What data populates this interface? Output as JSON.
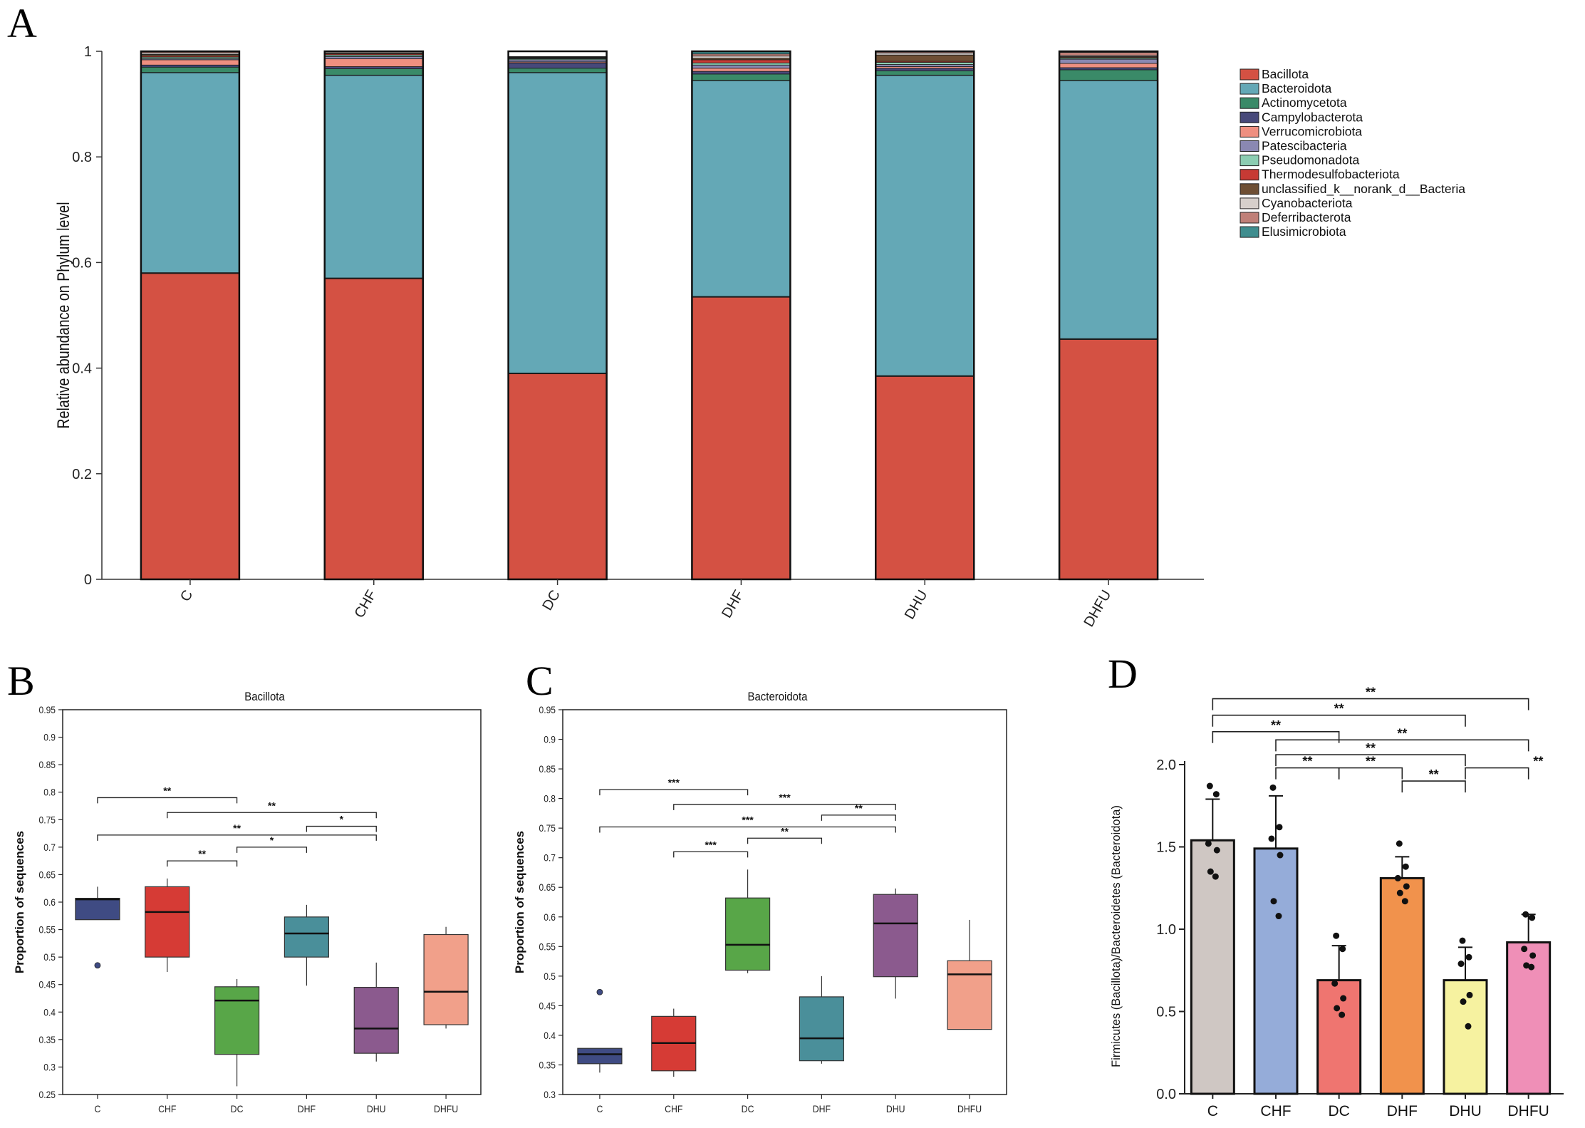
{
  "panels": {
    "A": "A",
    "B": "B",
    "C": "C",
    "D": "D"
  },
  "colors": {
    "Bacillota": "#d45143",
    "Bacteroidota": "#64a8b6",
    "Actinomycetota": "#3a8a68",
    "Campylobacterota": "#47497a",
    "Verrucomicrobiota": "#ee8f80",
    "Patescibacteria": "#8a88b2",
    "Pseudomonadota": "#8ccdb2",
    "Thermodesulfobacteriota": "#c73a34",
    "unclassified_k__norank_d__Bacteria": "#6e4f34",
    "Cyanobacteriota": "#d6cfcb",
    "Deferribacterota": "#c08078",
    "Elusimicrobiota": "#3f8d8e",
    "box_C": "#3f4b83",
    "box_CHF": "#d63b35",
    "box_DC": "#58a648",
    "box_DHF": "#4a8f9a",
    "box_DHU": "#8b5a8e",
    "box_DHFU": "#f1a08a",
    "bar_C": "#cfc7c3",
    "bar_CHF": "#95acd9",
    "bar_DC": "#ef7570",
    "bar_DHF": "#f1924c",
    "bar_DHU": "#f6f2a0",
    "bar_DHFU": "#ef8fb7"
  },
  "chart_data": [
    {
      "id": "A",
      "type": "bar",
      "stacked": true,
      "title": "",
      "xlabel": "",
      "ylabel": "Relative abundance on Phylum level",
      "ylim": [
        0,
        1
      ],
      "yticks": [
        "0",
        "0.2",
        "0.4",
        "0.6",
        "0.8",
        "1"
      ],
      "categories": [
        "C",
        "CHF",
        "DC",
        "DHF",
        "DHU",
        "DHFU"
      ],
      "legend_position": "right",
      "series": [
        {
          "name": "Bacillota",
          "values": [
            0.58,
            0.57,
            0.39,
            0.535,
            0.385,
            0.455
          ]
        },
        {
          "name": "Bacteroidota",
          "values": [
            0.38,
            0.385,
            0.57,
            0.41,
            0.57,
            0.49
          ]
        },
        {
          "name": "Actinomycetota",
          "values": [
            0.01,
            0.012,
            0.008,
            0.012,
            0.008,
            0.02
          ]
        },
        {
          "name": "Campylobacterota",
          "values": [
            0.004,
            0.004,
            0.01,
            0.005,
            0.005,
            0.004
          ]
        },
        {
          "name": "Verrucomicrobiota",
          "values": [
            0.01,
            0.015,
            0.002,
            0.006,
            0.003,
            0.008
          ]
        },
        {
          "name": "Patescibacteria",
          "values": [
            0.002,
            0.004,
            0.004,
            0.006,
            0.004,
            0.008
          ]
        },
        {
          "name": "Pseudomonadota",
          "values": [
            0.003,
            0.003,
            0.002,
            0.004,
            0.004,
            0.002
          ]
        },
        {
          "name": "Thermodesulfobacteriota",
          "values": [
            0.002,
            0.002,
            0.001,
            0.006,
            0.002,
            0.001
          ]
        },
        {
          "name": "unclassified_k__norank_d__Bacteria",
          "values": [
            0.003,
            0.002,
            0.001,
            0.003,
            0.012,
            0.002
          ]
        },
        {
          "name": "Cyanobacteriota",
          "values": [
            0.003,
            0.002,
            0.001,
            0.004,
            0.004,
            0.002
          ]
        },
        {
          "name": "Deferribacterota",
          "values": [
            0.002,
            0.001,
            0.001,
            0.004,
            0.002,
            0.006
          ]
        },
        {
          "name": "Elusimicrobiota",
          "values": [
            0.001,
            0.0,
            0.0,
            0.005,
            0.001,
            0.002
          ]
        }
      ]
    },
    {
      "id": "B",
      "type": "box",
      "title": "Bacillota",
      "xlabel": "",
      "ylabel": "Proportion of sequences",
      "ylim": [
        0.25,
        0.95
      ],
      "yticks": [
        "0.25",
        "0.3",
        "0.35",
        "0.4",
        "0.45",
        "0.5",
        "0.55",
        "0.6",
        "0.65",
        "0.7",
        "0.75",
        "0.8",
        "0.85",
        "0.9",
        "0.95"
      ],
      "categories": [
        "C",
        "CHF",
        "DC",
        "DHF",
        "DHU",
        "DHFU"
      ],
      "boxes": [
        {
          "group": "C",
          "q1": 0.568,
          "median": 0.605,
          "q3": 0.607,
          "whisker_low": 0.568,
          "whisker_high": 0.628,
          "outliers": [
            0.485
          ]
        },
        {
          "group": "CHF",
          "q1": 0.5,
          "median": 0.582,
          "q3": 0.628,
          "whisker_low": 0.473,
          "whisker_high": 0.643,
          "outliers": []
        },
        {
          "group": "DC",
          "q1": 0.323,
          "median": 0.421,
          "q3": 0.446,
          "whisker_low": 0.265,
          "whisker_high": 0.46,
          "outliers": []
        },
        {
          "group": "DHF",
          "q1": 0.5,
          "median": 0.543,
          "q3": 0.573,
          "whisker_low": 0.448,
          "whisker_high": 0.595,
          "outliers": []
        },
        {
          "group": "DHU",
          "q1": 0.325,
          "median": 0.37,
          "q3": 0.445,
          "whisker_low": 0.31,
          "whisker_high": 0.49,
          "outliers": []
        },
        {
          "group": "DHFU",
          "q1": 0.377,
          "median": 0.437,
          "q3": 0.541,
          "whisker_low": 0.37,
          "whisker_high": 0.555,
          "outliers": []
        }
      ],
      "significance": [
        {
          "from": "C",
          "to": "DC",
          "y": 0.79,
          "label": "**"
        },
        {
          "from": "CHF",
          "to": "DHU",
          "y": 0.763,
          "label": "**"
        },
        {
          "from": "DHF",
          "to": "DHU",
          "y": 0.738,
          "label": "*"
        },
        {
          "from": "C",
          "to": "DHU",
          "y": 0.722,
          "label": "**"
        },
        {
          "from": "DC",
          "to": "DHF",
          "y": 0.7,
          "label": "*"
        },
        {
          "from": "CHF",
          "to": "DC",
          "y": 0.675,
          "label": "**"
        }
      ]
    },
    {
      "id": "C",
      "type": "box",
      "title": "Bacteroidota",
      "xlabel": "",
      "ylabel": "Proportion of sequences",
      "ylim": [
        0.3,
        0.95
      ],
      "yticks": [
        "0.3",
        "0.35",
        "0.4",
        "0.45",
        "0.5",
        "0.55",
        "0.6",
        "0.65",
        "0.7",
        "0.75",
        "0.8",
        "0.85",
        "0.9",
        "0.95"
      ],
      "categories": [
        "C",
        "CHF",
        "DC",
        "DHF",
        "DHU",
        "DHFU"
      ],
      "boxes": [
        {
          "group": "C",
          "q1": 0.352,
          "median": 0.368,
          "q3": 0.378,
          "whisker_low": 0.337,
          "whisker_high": 0.378,
          "outliers": [
            0.473
          ]
        },
        {
          "group": "CHF",
          "q1": 0.34,
          "median": 0.387,
          "q3": 0.432,
          "whisker_low": 0.33,
          "whisker_high": 0.445,
          "outliers": []
        },
        {
          "group": "DC",
          "q1": 0.51,
          "median": 0.553,
          "q3": 0.632,
          "whisker_low": 0.505,
          "whisker_high": 0.68,
          "outliers": []
        },
        {
          "group": "DHF",
          "q1": 0.357,
          "median": 0.395,
          "q3": 0.465,
          "whisker_low": 0.352,
          "whisker_high": 0.5,
          "outliers": []
        },
        {
          "group": "DHU",
          "q1": 0.499,
          "median": 0.589,
          "q3": 0.638,
          "whisker_low": 0.462,
          "whisker_high": 0.648,
          "outliers": []
        },
        {
          "group": "DHFU",
          "q1": 0.41,
          "median": 0.503,
          "q3": 0.526,
          "whisker_low": 0.41,
          "whisker_high": 0.595,
          "outliers": []
        }
      ],
      "significance": [
        {
          "from": "C",
          "to": "DC",
          "y": 0.815,
          "label": "***"
        },
        {
          "from": "CHF",
          "to": "DHU",
          "y": 0.79,
          "label": "***"
        },
        {
          "from": "DHF",
          "to": "DHU",
          "y": 0.772,
          "label": "**"
        },
        {
          "from": "C",
          "to": "DHU",
          "y": 0.752,
          "label": "***"
        },
        {
          "from": "DC",
          "to": "DHF",
          "y": 0.733,
          "label": "**"
        },
        {
          "from": "CHF",
          "to": "DC",
          "y": 0.71,
          "label": "***"
        }
      ]
    },
    {
      "id": "D",
      "type": "bar",
      "title": "",
      "xlabel": "",
      "ylabel": "Firmicutes (Bacillota)/Bacteroidetes (Bacteroidota)",
      "ylim": [
        0,
        2.0
      ],
      "yticks": [
        "0.0",
        "0.5",
        "1.0",
        "1.5",
        "2.0"
      ],
      "categories": [
        "C",
        "CHF",
        "DC",
        "DHF",
        "DHU",
        "DHFU"
      ],
      "values": [
        1.54,
        1.49,
        0.69,
        1.31,
        0.69,
        0.92
      ],
      "errors": [
        0.25,
        0.32,
        0.21,
        0.13,
        0.2,
        0.17
      ],
      "points": [
        [
          1.87,
          1.82,
          1.52,
          1.48,
          1.35,
          1.32
        ],
        [
          1.86,
          1.62,
          1.55,
          1.45,
          1.17,
          1.08
        ],
        [
          0.96,
          0.88,
          0.67,
          0.58,
          0.52,
          0.48
        ],
        [
          1.52,
          1.38,
          1.31,
          1.26,
          1.22,
          1.17
        ],
        [
          0.93,
          0.83,
          0.79,
          0.6,
          0.56,
          0.41
        ],
        [
          1.09,
          1.07,
          0.88,
          0.84,
          0.78,
          0.77
        ]
      ],
      "significance": [
        {
          "from": "C",
          "to": "DHFU",
          "y": 2.4,
          "label": "**"
        },
        {
          "from": "C",
          "to": "DHU",
          "y": 2.3,
          "label": "**"
        },
        {
          "from": "C",
          "to": "DC",
          "y": 2.2,
          "label": "**"
        },
        {
          "from": "CHF",
          "to": "DHFU",
          "y": 2.15,
          "label": "**"
        },
        {
          "from": "CHF",
          "to": "DHU",
          "y": 2.06,
          "label": "**"
        },
        {
          "from": "CHF",
          "to": "DC",
          "y": 1.98,
          "label": "**"
        },
        {
          "from": "DC",
          "to": "DHF",
          "y": 1.98,
          "label": "**"
        },
        {
          "from": "DHU",
          "to": "DHFU",
          "y": 1.98,
          "label": "**"
        },
        {
          "from": "DHF",
          "to": "DHU",
          "y": 1.9,
          "label": "**"
        }
      ]
    }
  ]
}
